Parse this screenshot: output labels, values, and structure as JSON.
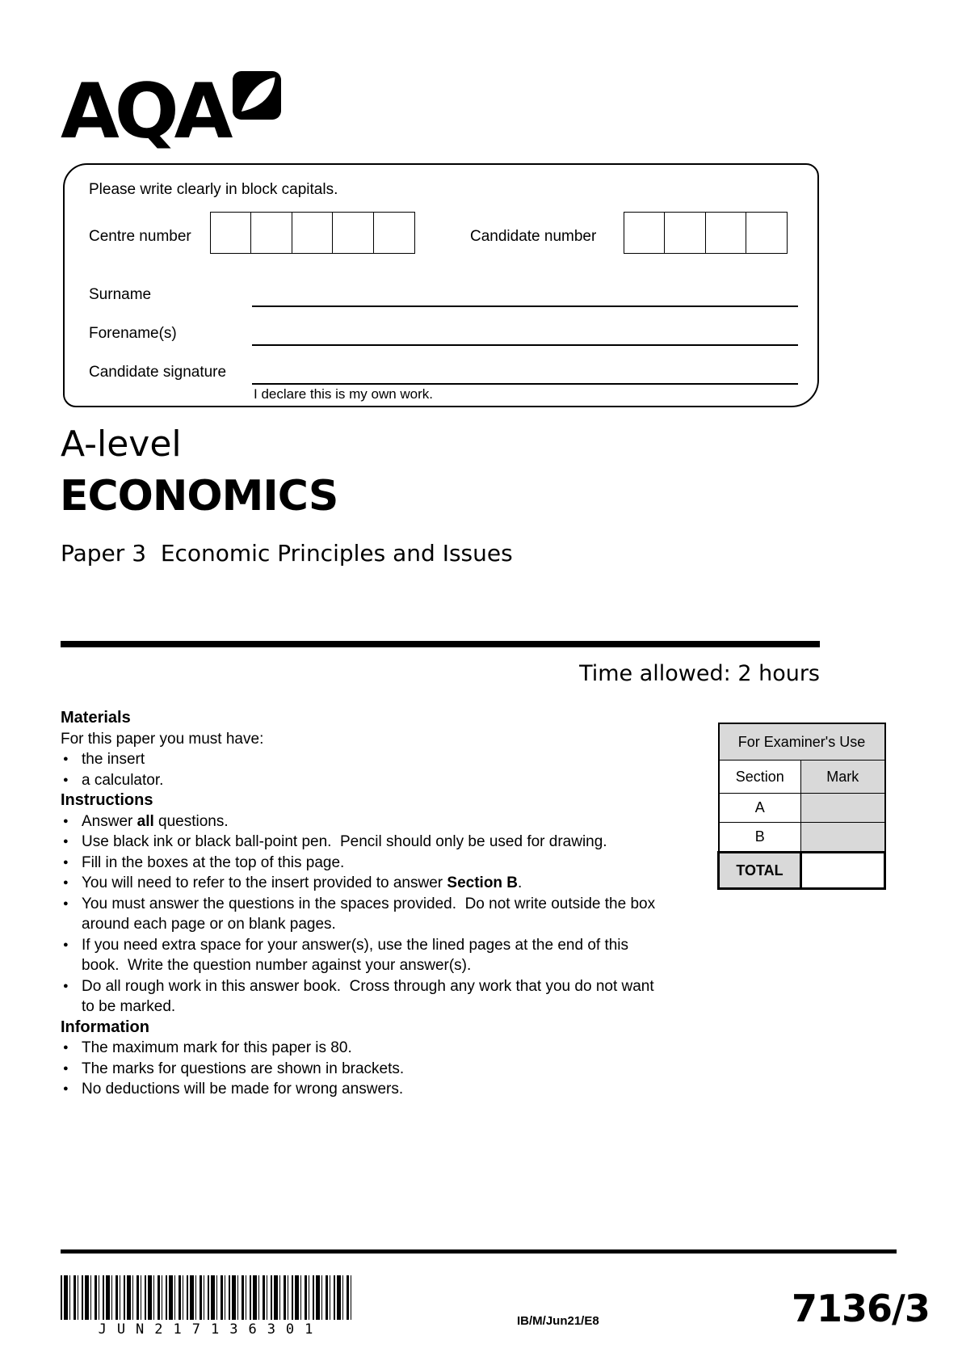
{
  "logo": {
    "text": "AQA"
  },
  "candidate_box": {
    "instruction": "Please write clearly in block capitals.",
    "centre_number_label": "Centre number",
    "centre_number_cells": 5,
    "candidate_number_label": "Candidate number",
    "candidate_number_cells": 4,
    "surname_label": "Surname",
    "forename_label": "Forename(s)",
    "signature_label": "Candidate signature",
    "declaration": "I declare this is my own work."
  },
  "title": {
    "qualification": "A-level",
    "subject": "ECONOMICS",
    "paper": "Paper 3  Economic Principles and Issues",
    "time_allowed": "Time allowed: 2 hours"
  },
  "materials": {
    "heading": "Materials",
    "intro": "For this paper you must have:",
    "items": [
      "the insert",
      "a calculator."
    ]
  },
  "instructions": {
    "heading": "Instructions",
    "items": [
      [
        {
          "t": "Answer "
        },
        {
          "t": "all",
          "b": true
        },
        {
          "t": " questions."
        }
      ],
      [
        {
          "t": "Use black ink or black ball-point pen.  Pencil should only be used for drawing."
        }
      ],
      [
        {
          "t": "Fill in the boxes at the top of this page."
        }
      ],
      [
        {
          "t": "You will need to refer to the insert provided to answer "
        },
        {
          "t": "Section B",
          "b": true
        },
        {
          "t": "."
        }
      ],
      [
        {
          "t": "You must answer the questions in the spaces provided.  Do not write outside the box around each page or on blank pages."
        }
      ],
      [
        {
          "t": "If you need extra space for your answer(s), use the lined pages at the end of this book.  Write the question number against your answer(s)."
        }
      ],
      [
        {
          "t": "Do all rough work in this answer book.  Cross through any work that you do not want to be marked."
        }
      ]
    ]
  },
  "information": {
    "heading": "Information",
    "items": [
      "The maximum mark for this paper is 80.",
      "The marks for questions are shown in brackets.",
      "No deductions will be made for wrong answers."
    ]
  },
  "examiner_table": {
    "title": "For Examiner's Use",
    "col_headers": [
      "Section",
      "Mark"
    ],
    "rows": [
      [
        "A",
        ""
      ],
      [
        "B",
        ""
      ]
    ],
    "total_label": "TOTAL",
    "total_value": ""
  },
  "footer": {
    "barcode_text": "JUN217136301",
    "ref": "IB/M/Jun21/E8",
    "paper_code": "7136/3"
  },
  "colors": {
    "table_shade": "#d9d9d9",
    "ink": "#000000"
  }
}
